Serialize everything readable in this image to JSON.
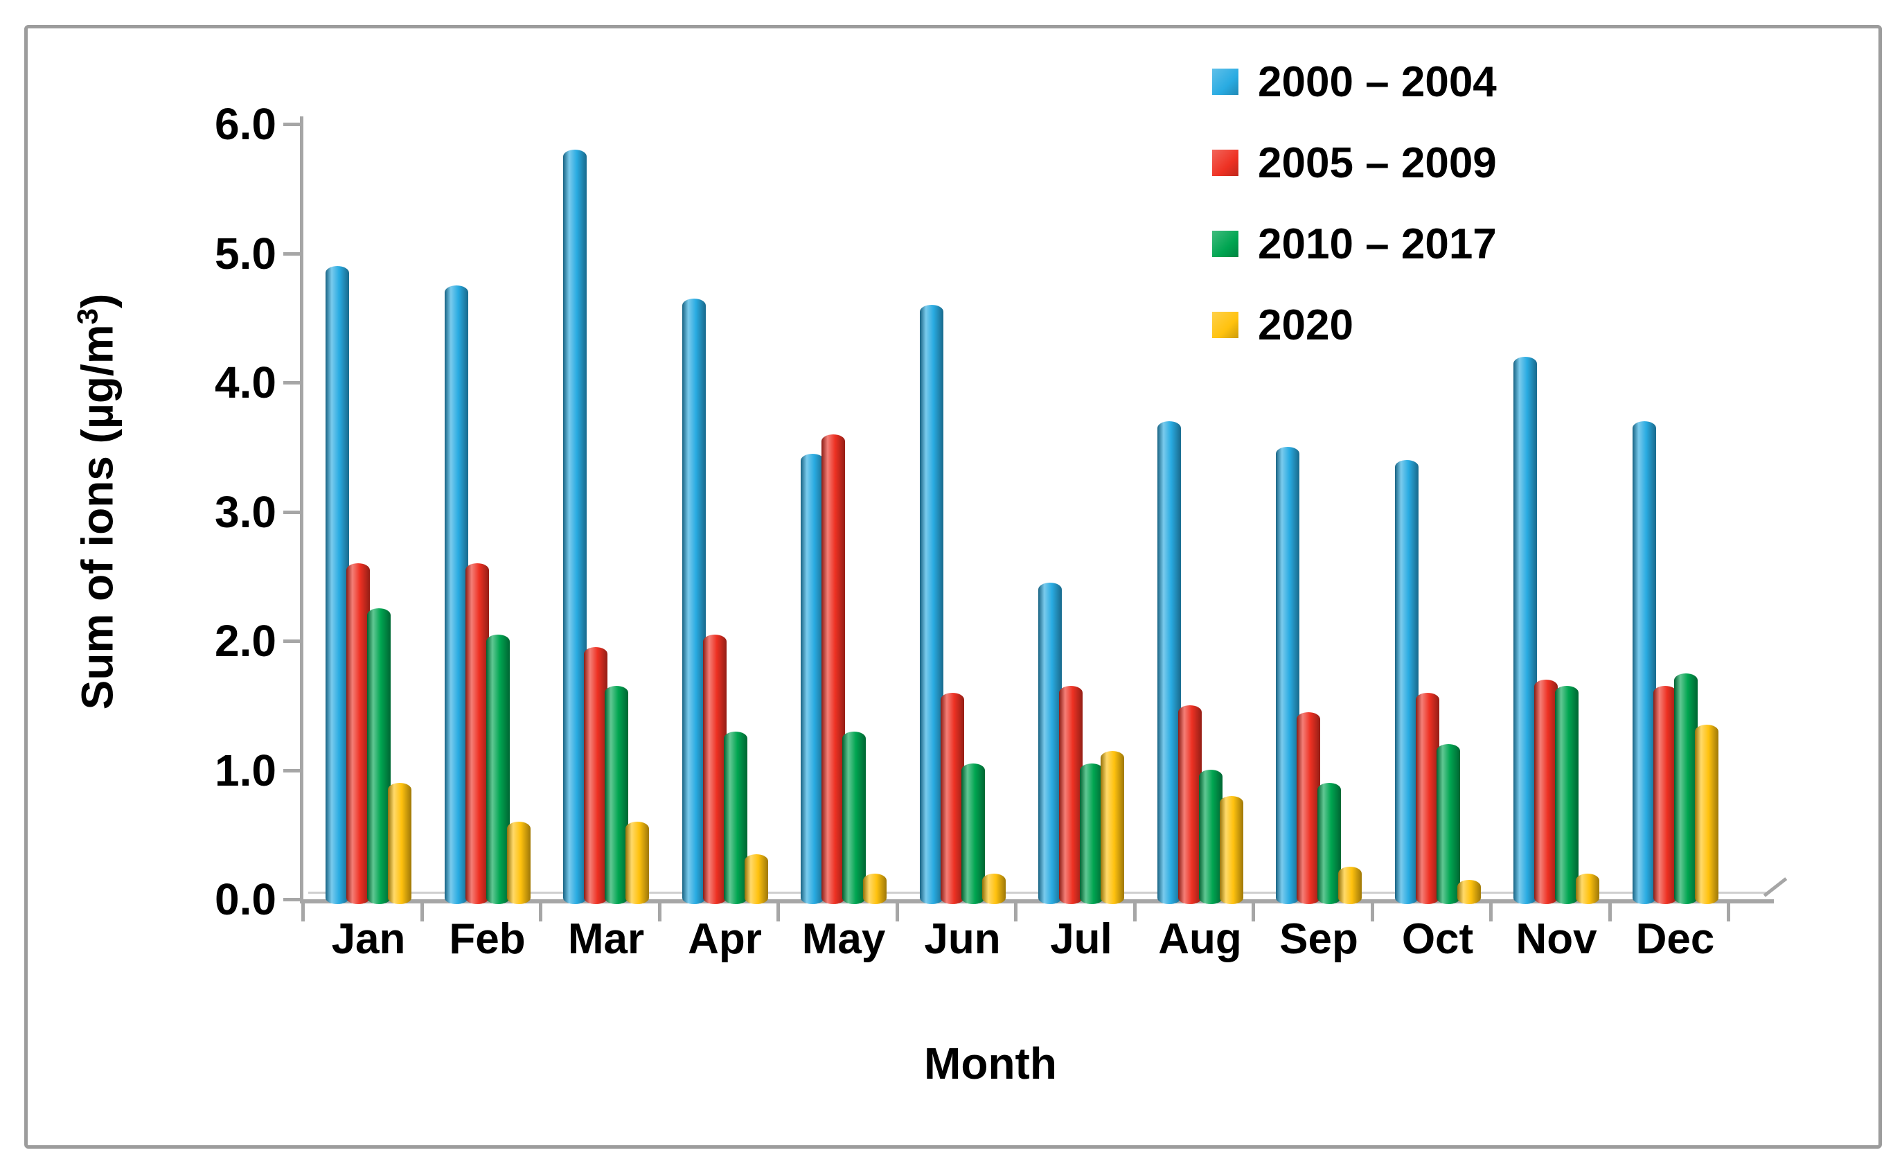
{
  "figure": {
    "ylabel_prefix": "Sum of ions (µg/m",
    "ylabel_sup": "3",
    "ylabel_suffix": ")"
  },
  "chart_data": {
    "type": "bar",
    "title": "",
    "xlabel": "Month",
    "ylabel": "Sum of ions (µg/m³)",
    "ylim": [
      0,
      6
    ],
    "ytick_step": 1.0,
    "ytick_labels": [
      "0.0",
      "1.0",
      "2.0",
      "3.0",
      "4.0",
      "5.0",
      "6.0"
    ],
    "grid": false,
    "legend_position": "top-right",
    "bar_style": "3d-cylinder",
    "categories": [
      "Jan",
      "Feb",
      "Mar",
      "Apr",
      "May",
      "Jun",
      "Jul",
      "Aug",
      "Sep",
      "Oct",
      "Nov",
      "Dec"
    ],
    "series": [
      {
        "name": "2000 – 2004",
        "color": "#29ABE2",
        "values": [
          4.9,
          4.75,
          5.8,
          4.65,
          3.45,
          4.6,
          2.45,
          3.7,
          3.5,
          3.4,
          4.2,
          3.7
        ]
      },
      {
        "name": "2005 – 2009",
        "color": "#EE3123",
        "values": [
          2.6,
          2.6,
          1.95,
          2.05,
          3.6,
          1.6,
          1.65,
          1.5,
          1.45,
          1.6,
          1.7,
          1.65
        ]
      },
      {
        "name": "2010 – 2017",
        "color": "#00A551",
        "values": [
          2.25,
          2.05,
          1.65,
          1.3,
          1.3,
          1.05,
          1.05,
          1.0,
          0.9,
          1.2,
          1.65,
          1.75
        ]
      },
      {
        "name": "2020",
        "color": "#FFC20E",
        "values": [
          0.9,
          0.6,
          0.6,
          0.35,
          0.2,
          0.2,
          1.15,
          0.8,
          0.25,
          0.15,
          0.2,
          1.35
        ]
      }
    ]
  }
}
